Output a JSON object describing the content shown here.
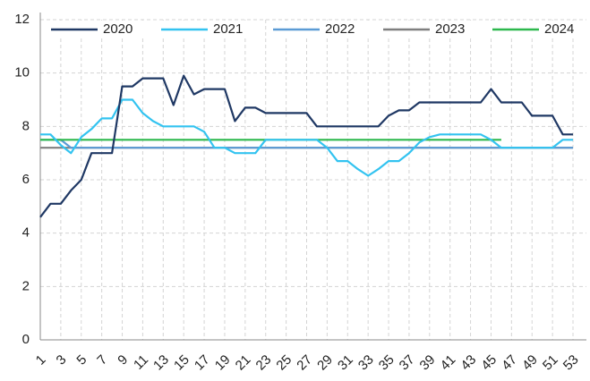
{
  "chart_data": {
    "type": "line",
    "categories": [
      1,
      null,
      3,
      null,
      5,
      null,
      7,
      null,
      9,
      null,
      11,
      null,
      13,
      null,
      15,
      null,
      17,
      null,
      19,
      null,
      21,
      null,
      23,
      null,
      25,
      null,
      27,
      null,
      29,
      null,
      31,
      null,
      33,
      null,
      35,
      null,
      37,
      null,
      39,
      null,
      41,
      null,
      43,
      null,
      45,
      null,
      47,
      null,
      49,
      null,
      51,
      null,
      53
    ],
    "series": [
      {
        "name": "2020",
        "color": "#1f3864",
        "values": [
          4.6,
          5.1,
          5.1,
          5.6,
          6.0,
          7.0,
          7.0,
          7.0,
          9.5,
          9.5,
          9.8,
          9.8,
          9.8,
          8.8,
          9.9,
          9.2,
          9.4,
          9.4,
          9.4,
          8.2,
          8.7,
          8.7,
          8.5,
          8.5,
          8.5,
          8.5,
          8.5,
          8.0,
          8.0,
          8.0,
          8.0,
          8.0,
          8.0,
          8.0,
          8.4,
          8.6,
          8.6,
          8.9,
          8.9,
          8.9,
          8.9,
          8.9,
          8.9,
          8.9,
          9.4,
          8.9,
          8.9,
          8.9,
          8.4,
          8.4,
          8.4,
          7.7,
          7.7
        ]
      },
      {
        "name": "2021",
        "color": "#33c3f0",
        "values": [
          7.7,
          7.7,
          7.3,
          7.0,
          7.6,
          7.9,
          8.3,
          8.3,
          9.0,
          9.0,
          8.5,
          8.2,
          8.0,
          8.0,
          8.0,
          8.0,
          7.8,
          7.2,
          7.2,
          7.0,
          7.0,
          7.0,
          7.5,
          7.5,
          7.5,
          7.5,
          7.5,
          7.5,
          7.2,
          6.7,
          6.7,
          6.4,
          6.15,
          6.4,
          6.7,
          6.7,
          7.0,
          7.4,
          7.6,
          7.7,
          7.7,
          7.7,
          7.7,
          7.7,
          7.5,
          7.2,
          7.2,
          7.2,
          7.2,
          7.2,
          7.2,
          7.5,
          7.5
        ]
      },
      {
        "name": "2022",
        "color": "#5b9bd5",
        "values": [
          7.5,
          7.5,
          7.5,
          7.2,
          7.2,
          7.2,
          7.2,
          7.2,
          7.2,
          7.2,
          7.2,
          7.2,
          7.2,
          7.2,
          7.2,
          7.2,
          7.2,
          7.2,
          7.2,
          7.2,
          7.2,
          7.2,
          7.2,
          7.2,
          7.2,
          7.2,
          7.2,
          7.2,
          7.2,
          7.2,
          7.2,
          7.2,
          7.2,
          7.2,
          7.2,
          7.2,
          7.2,
          7.2,
          7.2,
          7.2,
          7.2,
          7.2,
          7.2,
          7.2,
          7.2,
          7.2,
          7.2,
          7.2,
          7.2,
          7.2,
          7.2,
          7.2,
          7.2
        ]
      },
      {
        "name": "2023",
        "color": "#7f7f7f",
        "values": [
          7.2,
          7.2,
          7.2,
          7.2,
          7.2,
          7.2,
          7.2,
          7.2,
          7.2,
          7.2,
          7.2,
          7.2,
          7.2,
          7.2,
          7.2,
          7.2,
          7.2,
          7.2,
          7.2,
          7.2,
          7.2,
          7.2,
          7.2,
          7.2,
          7.2,
          7.2,
          7.2,
          7.2,
          7.2,
          7.2,
          7.2,
          7.2,
          7.2,
          7.2,
          7.2,
          7.2,
          7.2,
          7.2,
          7.2,
          7.2,
          7.2,
          7.2,
          7.2,
          7.2,
          7.2,
          7.2,
          7.2,
          7.2,
          7.2,
          7.2,
          7.2,
          7.2,
          7.2
        ]
      },
      {
        "name": "2024",
        "color": "#2db84d",
        "values": [
          7.5,
          7.5,
          7.5,
          7.5,
          7.5,
          7.5,
          7.5,
          7.5,
          7.5,
          7.5,
          7.5,
          7.5,
          7.5,
          7.5,
          7.5,
          7.5,
          7.5,
          7.5,
          7.5,
          7.5,
          7.5,
          7.5,
          7.5,
          7.5,
          7.5,
          7.5,
          7.5,
          7.5,
          7.5,
          7.5,
          7.5,
          7.5,
          7.5,
          7.5,
          7.5,
          7.5,
          7.5,
          7.5,
          7.5,
          7.5,
          7.5,
          7.5,
          7.5,
          7.5,
          7.5,
          7.5,
          null,
          null,
          null,
          null,
          null,
          null,
          null
        ]
      }
    ],
    "ylim": [
      0,
      12
    ],
    "yticks": [
      0,
      2,
      4,
      6,
      8,
      10,
      12
    ],
    "grid": true,
    "legend": "top"
  }
}
